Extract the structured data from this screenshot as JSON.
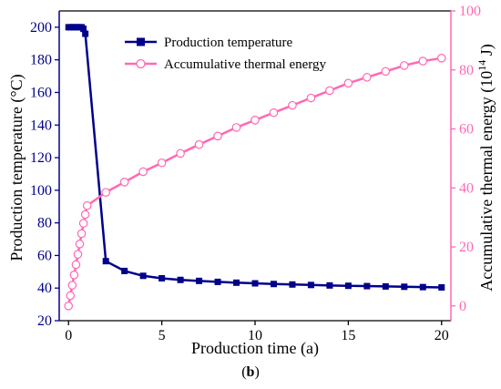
{
  "chart_data": {
    "type": "line",
    "xlabel": "Production time (a)",
    "xlim": [
      -0.5,
      20.5
    ],
    "xticks": [
      0,
      5,
      10,
      15,
      20
    ],
    "y_left": {
      "label": "Production temperature (°C)",
      "ylim": [
        20,
        210
      ],
      "ticks": [
        20,
        40,
        60,
        80,
        100,
        120,
        140,
        160,
        180,
        200
      ],
      "color": "#00008B"
    },
    "y_right": {
      "label_main": "Accumulative thermal energy (10",
      "label_sup": "14",
      "label_end": " J)",
      "ylim": [
        -5,
        100
      ],
      "ticks": [
        0,
        20,
        40,
        60,
        80,
        100
      ],
      "color": "#FF69B4"
    },
    "series": [
      {
        "name": "Production temperature",
        "axis": "left",
        "color": "#00008B",
        "marker": "square",
        "x": [
          0,
          0.1,
          0.2,
          0.3,
          0.4,
          0.5,
          0.6,
          0.7,
          0.8,
          0.9,
          2,
          3,
          4,
          5,
          6,
          7,
          8,
          9,
          10,
          11,
          12,
          13,
          14,
          15,
          16,
          17,
          18,
          19,
          20
        ],
        "y": [
          200,
          200,
          200,
          200,
          200,
          200,
          200,
          200,
          199,
          196,
          56.5,
          50.5,
          47.5,
          46,
          45,
          44.4,
          43.8,
          43.3,
          42.9,
          42.5,
          42.2,
          41.9,
          41.6,
          41.4,
          41.2,
          41,
          40.8,
          40.6,
          40.4
        ]
      },
      {
        "name": "Accumulative thermal energy",
        "axis": "right",
        "color": "#FF69B4",
        "marker": "circle-open",
        "x": [
          0,
          0.1,
          0.2,
          0.3,
          0.4,
          0.5,
          0.6,
          0.7,
          0.8,
          0.9,
          1,
          2,
          3,
          4,
          5,
          6,
          7,
          8,
          9,
          10,
          11,
          12,
          13,
          14,
          15,
          16,
          17,
          18,
          19,
          20
        ],
        "y": [
          0,
          3.5,
          7,
          10.5,
          14,
          17.5,
          21,
          24.5,
          28,
          31,
          34,
          38.5,
          42,
          45.5,
          48.5,
          51.7,
          54.7,
          57.6,
          60.5,
          63,
          65.5,
          68,
          70.5,
          73,
          75.5,
          77.5,
          79.5,
          81.5,
          83,
          84
        ]
      }
    ],
    "legend": {
      "position": "top-center",
      "entries": [
        "Production temperature",
        "Accumulative thermal energy"
      ]
    },
    "caption": {
      "open": "(",
      "letter": "b",
      "close": ")"
    }
  }
}
